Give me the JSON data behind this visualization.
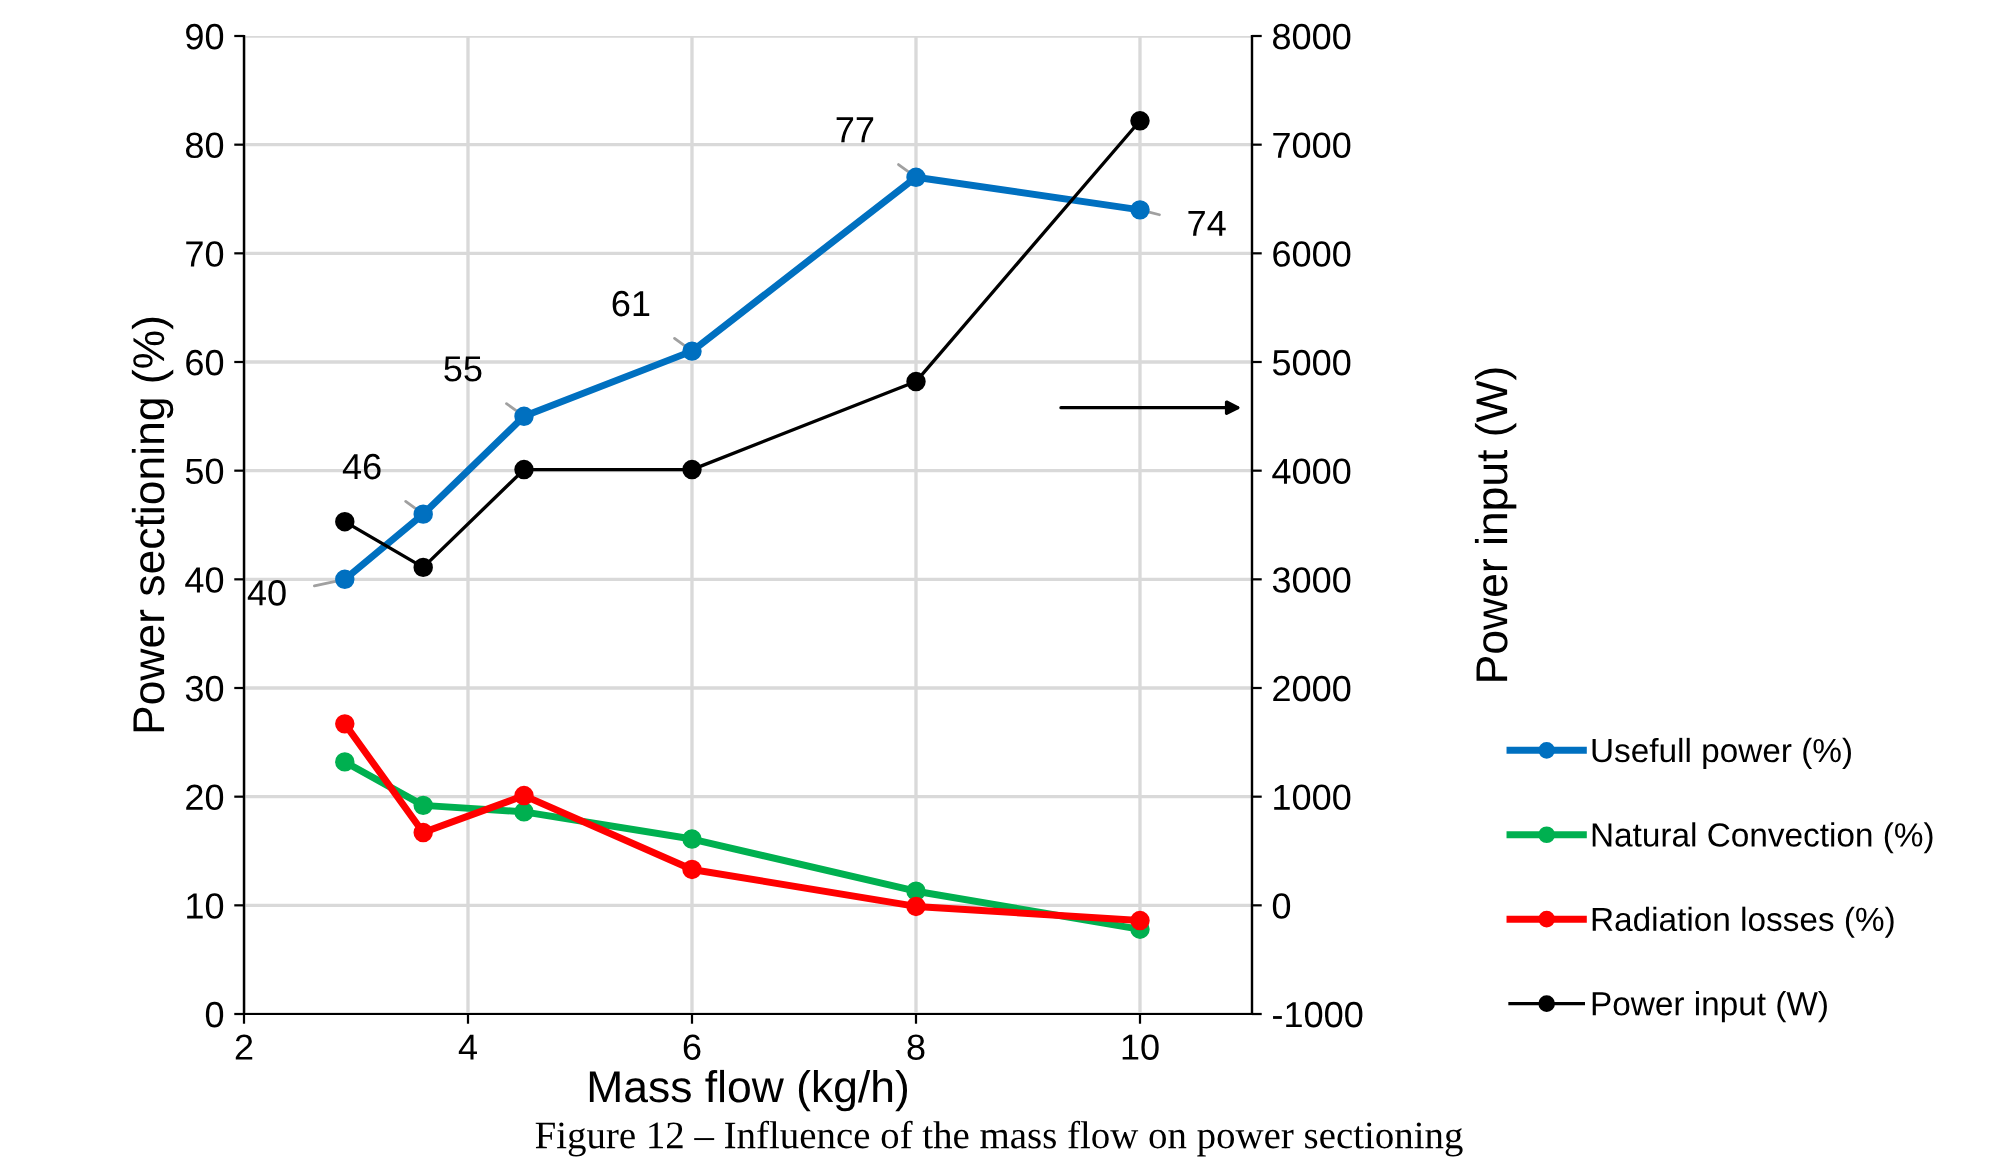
{
  "chart_data": {
    "type": "line",
    "xlabel": "Mass flow (kg/h)",
    "ylabel": "Power sectioning (%)",
    "y2label": "Power input (W)",
    "x": [
      2.9,
      3.6,
      4.5,
      6,
      8,
      10
    ],
    "series": [
      {
        "name": "Usefull power (%)",
        "color": "#0070c0",
        "values": [
          40,
          46,
          55,
          61,
          77,
          74
        ],
        "value_labels": [
          "40",
          "46",
          "55",
          "61",
          "77",
          "74"
        ]
      },
      {
        "name": "Natural Convection (%)",
        "color": "#00b050",
        "values": [
          23.2,
          19.2,
          18.6,
          16.1,
          11.3,
          7.8
        ]
      },
      {
        "name": "Radiation losses (%)",
        "color": "#ff0000",
        "values": [
          26.7,
          16.7,
          20.1,
          13.3,
          9.9,
          8.6
        ]
      },
      {
        "name": "Power input (W)",
        "color": "#000000",
        "axis": "y2",
        "values": [
          3530,
          3110,
          4010,
          4010,
          4820,
          7220
        ]
      }
    ],
    "xlim": [
      2,
      11
    ],
    "xticks": [
      2,
      4,
      6,
      8,
      10
    ],
    "ylim": [
      0,
      90
    ],
    "yticks": [
      0,
      10,
      20,
      30,
      40,
      50,
      60,
      70,
      80,
      90
    ],
    "y2lim": [
      -1000,
      8000
    ],
    "y2ticks": [
      -1000,
      0,
      1000,
      2000,
      3000,
      4000,
      5000,
      6000,
      7000,
      8000
    ],
    "grid": true,
    "legend": "right",
    "marker": "circle",
    "line_style": "solid",
    "annotations": [
      "Figure 12 – Influence of the mass flow on power sectioning"
    ]
  }
}
